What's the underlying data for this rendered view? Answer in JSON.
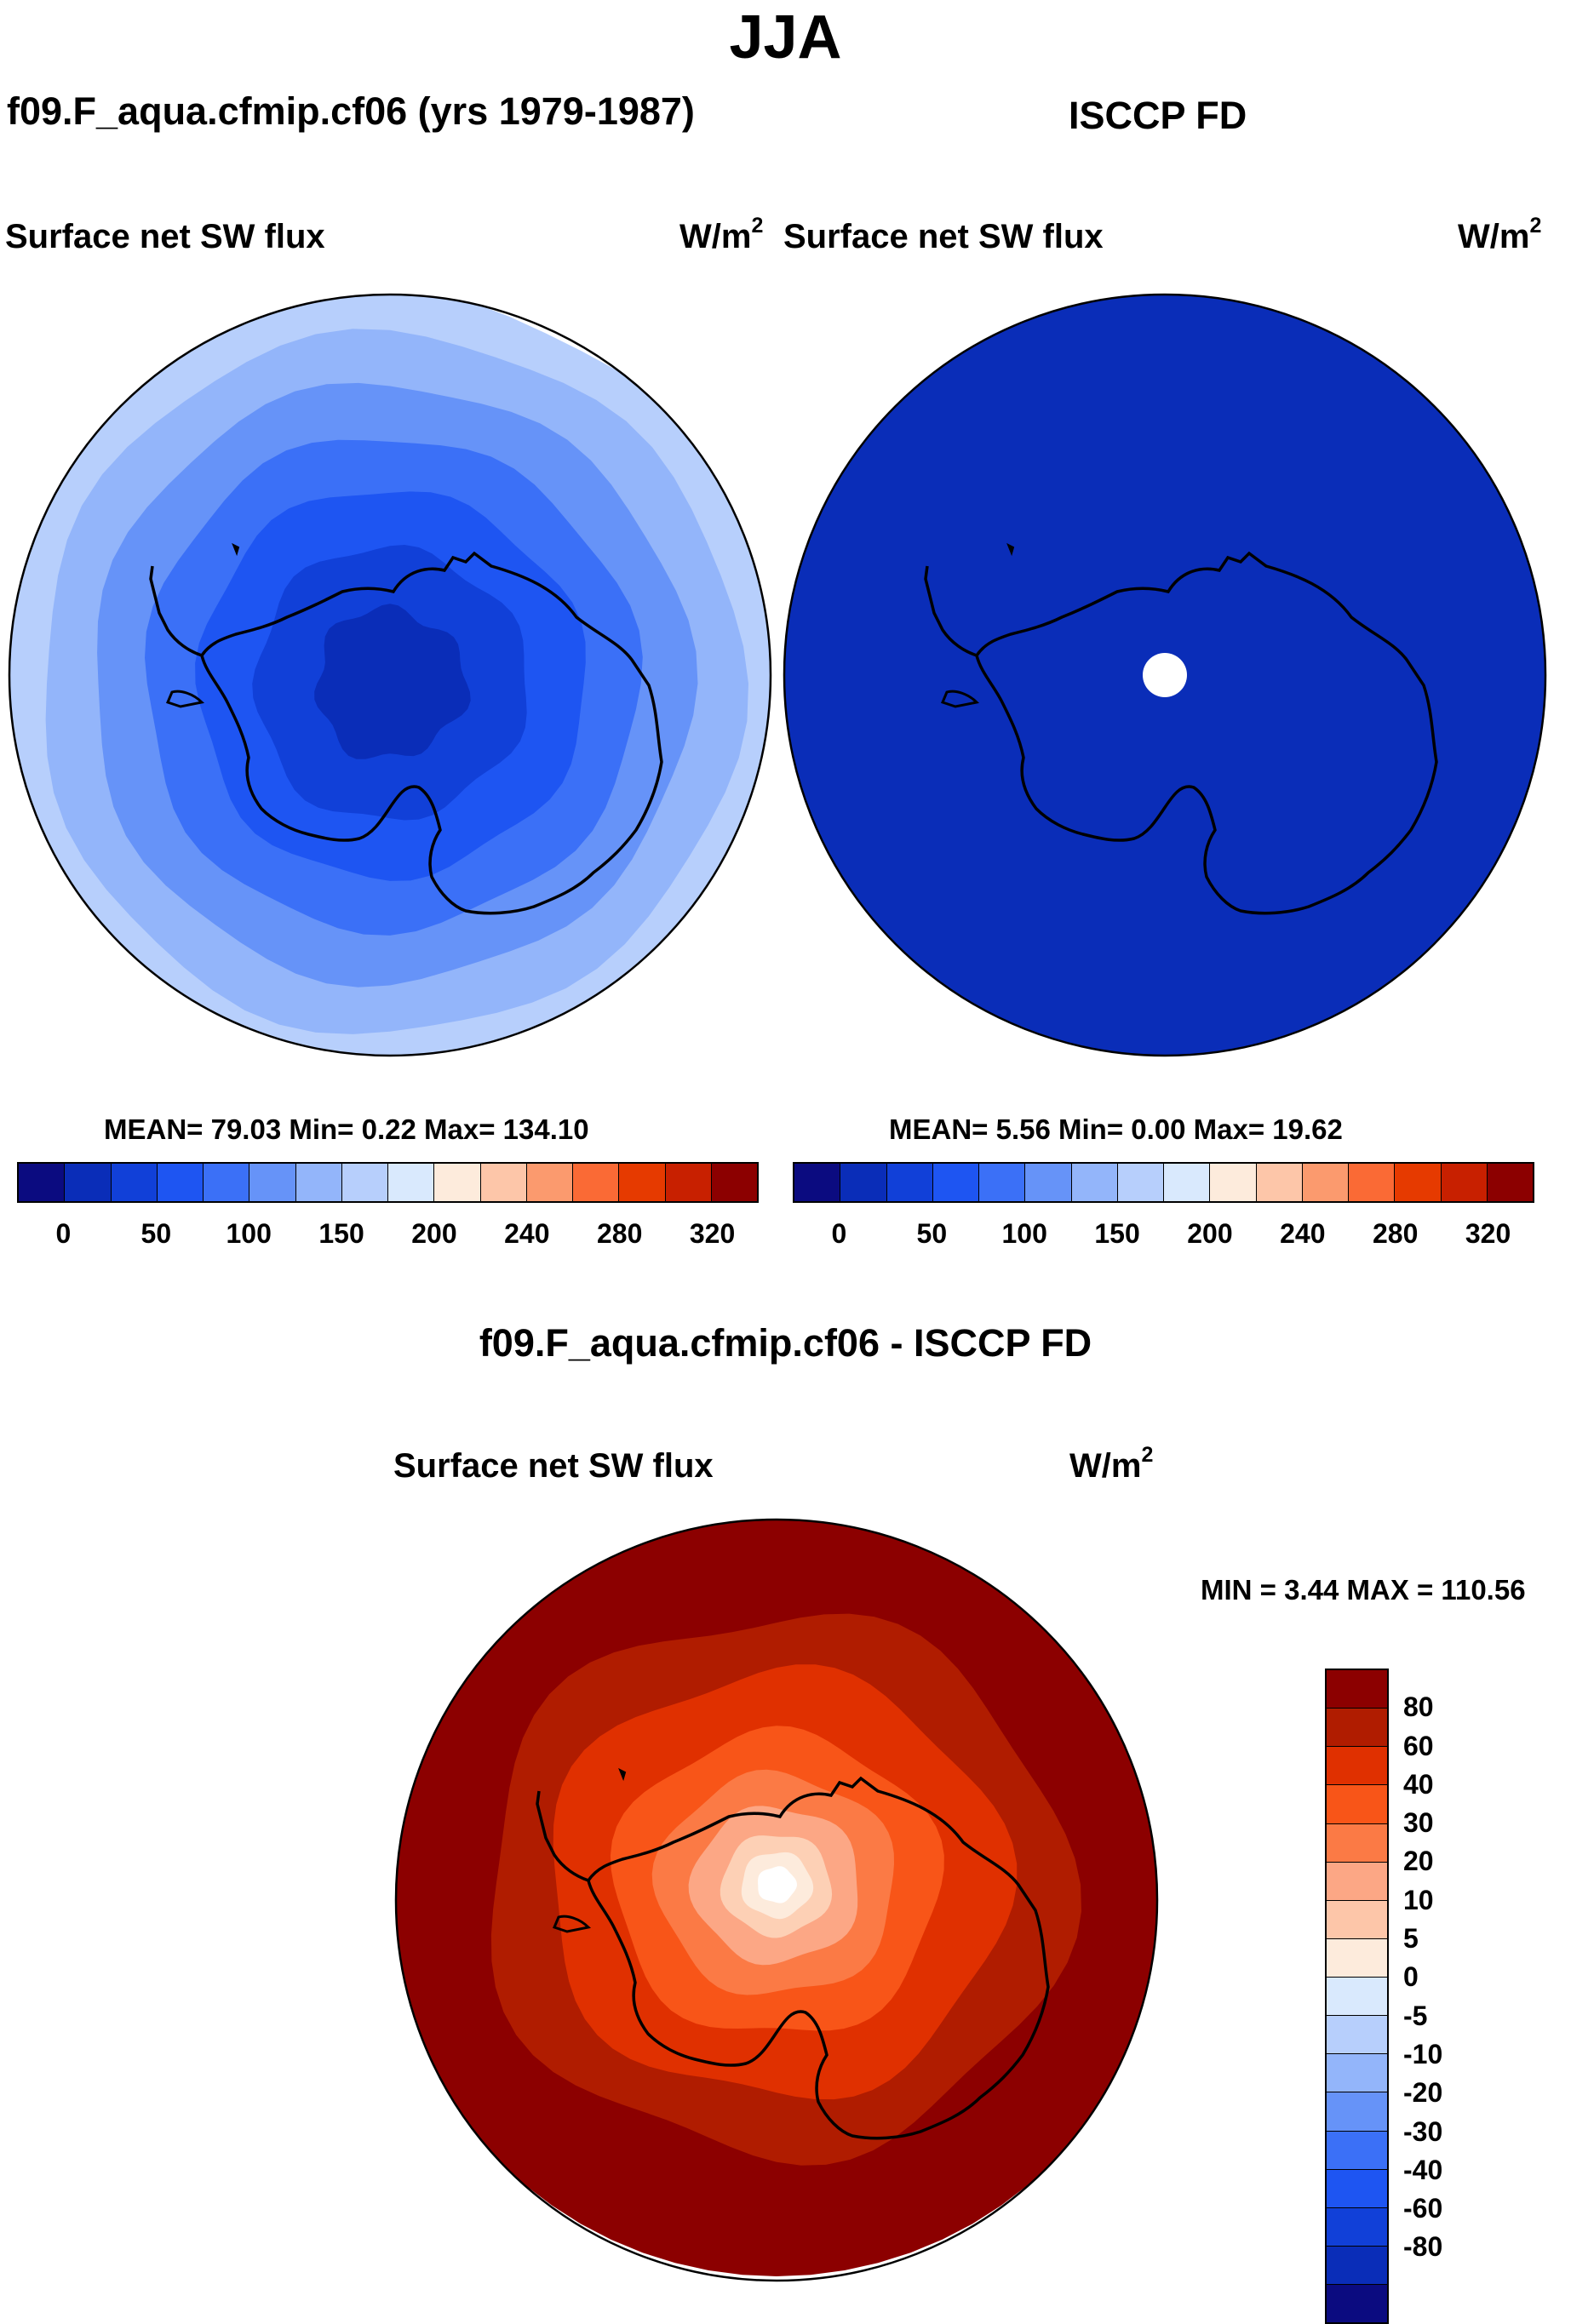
{
  "header": {
    "season": "JJA"
  },
  "panels": {
    "model": {
      "title": "f09.F_aqua.cfmip.cf06 (yrs 1979-1987)",
      "variable": "Surface net SW flux",
      "units_base": "W/m",
      "units_exp": "2",
      "stats": "MEAN=  79.03  Min=   0.22  Max= 134.10",
      "rings_m2": [
        0,
        20,
        40,
        60,
        80,
        100,
        120
      ],
      "colors": [
        "#0a2db8",
        "#1140d8",
        "#1e55f2",
        "#3b70f7",
        "#6693f8",
        "#93b5fa",
        "#b7cffc"
      ]
    },
    "obs": {
      "title": "ISCCP FD",
      "variable": "Surface net SW flux",
      "units_base": "W/m",
      "units_exp": "2",
      "stats": "MEAN=   5.56  Min=   0.00  Max=  19.62",
      "fill_color": "#0a2db8",
      "missing_color": "#ffffff"
    },
    "diff": {
      "title": "f09.F_aqua.cfmip.cf06 - ISCCP FD",
      "variable": "Surface net SW flux",
      "units_base": "W/m",
      "units_exp": "2",
      "minmax": "MIN =   3.44 MAX = 110.56",
      "colors": [
        "#8c0000",
        "#b01c00",
        "#e03000",
        "#f85518",
        "#fb7a45",
        "#fca785",
        "#fdd0b5",
        "#fdebdc",
        "#ffffff"
      ]
    }
  },
  "abs_colorbar": {
    "colors": [
      "#0b0b80",
      "#0a2db8",
      "#1140d8",
      "#1e55f2",
      "#3b70f7",
      "#6693f8",
      "#93b5fa",
      "#b7cffc",
      "#d9e9fd",
      "#fdebdc",
      "#fdc6a9",
      "#fb9a6e",
      "#fa6a35",
      "#e63a00",
      "#c82000",
      "#8c0000"
    ],
    "labels": [
      "0",
      "50",
      "100",
      "150",
      "200",
      "240",
      "280",
      "320"
    ]
  },
  "diff_colorbar": {
    "colors": [
      "#8c0000",
      "#b01c00",
      "#e03000",
      "#f85518",
      "#fb7a45",
      "#fca785",
      "#fdc6a9",
      "#fdebdc",
      "#d9e9fd",
      "#b7cffc",
      "#93b5fa",
      "#6693f8",
      "#3b70f7",
      "#1e55f2",
      "#1140d8",
      "#0a2db8",
      "#0b0b80"
    ],
    "labels": [
      "80",
      "60",
      "40",
      "30",
      "20",
      "10",
      "5",
      "0",
      "-5",
      "-10",
      "-20",
      "-30",
      "-40",
      "-60",
      "-80"
    ]
  }
}
